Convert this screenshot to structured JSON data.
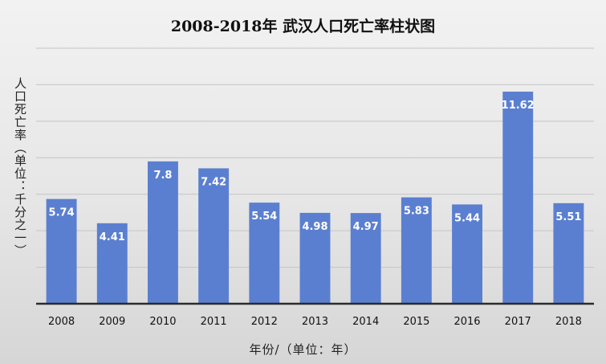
{
  "chart_data": {
    "type": "bar",
    "title": "2008-2018年 武汉人口死亡率柱状图",
    "xlabel": "年份/（单位：年）",
    "ylabel": "人口死亡率（单位：千分之一）",
    "categories": [
      "2008",
      "2009",
      "2010",
      "2011",
      "2012",
      "2013",
      "2014",
      "2015",
      "2016",
      "2017",
      "2018"
    ],
    "values": [
      5.74,
      4.41,
      7.8,
      7.42,
      5.54,
      4.98,
      4.97,
      5.83,
      5.44,
      11.62,
      5.51
    ],
    "ylim": [
      0,
      14
    ],
    "grid": true,
    "bar_color": "#5b7fd0",
    "data_labels": true
  }
}
